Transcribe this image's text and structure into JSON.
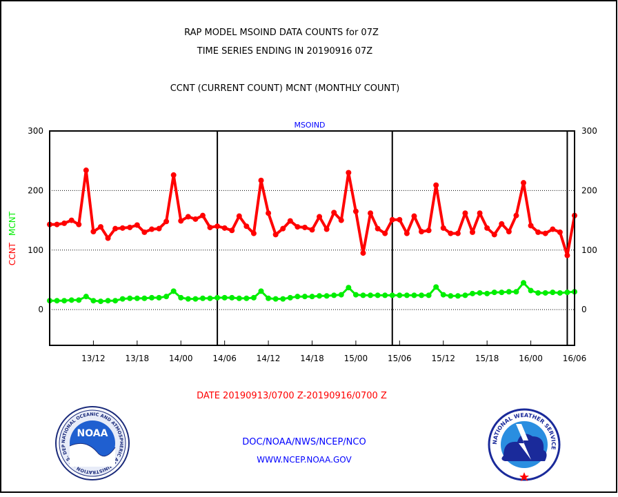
{
  "header": {
    "title_line1": "RAP MODEL MSOIND DATA COUNTS for 07Z",
    "title_line2": "TIME SERIES ENDING IN 20190916 07Z",
    "subtitle": "CCNT (CURRENT COUNT) MCNT (MONTHLY COUNT)"
  },
  "footer": {
    "date_range": "DATE 20190913/0700 Z-20190916/0700 Z",
    "org_line": "DOC/NOAA/NWS/NCEP/NCO",
    "url_line": "WWW.NCEP.NOAA.GOV"
  },
  "logos": {
    "noaa": {
      "center_text": "NOAA",
      "ring_text": "NATIONAL OCEANIC AND ATMOSPHERIC ADMINISTRATION · U.S. DEPARTMENT OF COMMERCE"
    },
    "nws": {
      "ring_text": "NATIONAL WEATHER SERVICE"
    }
  },
  "colors": {
    "ccnt": "#ff0000",
    "mcnt": "#00ee00",
    "label_blue": "#0000ff",
    "frame": "#000000"
  },
  "chart_data": {
    "type": "line",
    "plot_label": "MSOIND",
    "ylabel_left": {
      "part1": "CCNT",
      "part2": "MCNT"
    },
    "ylim": [
      -60,
      300
    ],
    "yticks": [
      0,
      100,
      200,
      300
    ],
    "dotted_gridlines_at": [
      0,
      100,
      200
    ],
    "x_unit": "hours since 20190913/0700Z",
    "xlim": [
      0,
      72
    ],
    "xticks": [
      {
        "x": 6,
        "label": "13/12"
      },
      {
        "x": 12,
        "label": "13/18"
      },
      {
        "x": 18,
        "label": "14/00"
      },
      {
        "x": 24,
        "label": "14/06"
      },
      {
        "x": 30,
        "label": "14/12"
      },
      {
        "x": 36,
        "label": "14/18"
      },
      {
        "x": 42,
        "label": "15/00"
      },
      {
        "x": 48,
        "label": "15/06"
      },
      {
        "x": 54,
        "label": "15/12"
      },
      {
        "x": 60,
        "label": "15/18"
      },
      {
        "x": 66,
        "label": "16/00"
      },
      {
        "x": 72,
        "label": "16/06"
      }
    ],
    "day_separators_x": [
      23,
      47,
      71
    ],
    "series": [
      {
        "name": "CCNT",
        "x": [
          0,
          1,
          2,
          3,
          4,
          5,
          6,
          7,
          8,
          9,
          10,
          11,
          12,
          13,
          14,
          15,
          16,
          17,
          18,
          19,
          20,
          21,
          22,
          23,
          24,
          25,
          26,
          27,
          28,
          29,
          30,
          31,
          32,
          33,
          34,
          35,
          36,
          37,
          38,
          39,
          40,
          41,
          42,
          43,
          44,
          45,
          46,
          47,
          48,
          49,
          50,
          51,
          52,
          53,
          54,
          55,
          56,
          57,
          58,
          59,
          60,
          61,
          62,
          63,
          64,
          65,
          66,
          67,
          68,
          69,
          70,
          71,
          72
        ],
        "values": [
          143,
          143,
          145,
          150,
          143,
          234,
          131,
          139,
          120,
          136,
          137,
          138,
          142,
          130,
          135,
          136,
          148,
          226,
          149,
          156,
          152,
          158,
          138,
          140,
          137,
          133,
          157,
          140,
          128,
          217,
          162,
          126,
          136,
          149,
          139,
          138,
          134,
          156,
          135,
          163,
          150,
          230,
          165,
          95,
          162,
          136,
          128,
          151,
          151,
          128,
          157,
          131,
          133,
          209,
          137,
          128,
          128,
          162,
          130,
          162,
          137,
          126,
          144,
          131,
          158,
          213,
          141,
          130,
          128,
          135,
          130,
          91,
          158
        ]
      },
      {
        "name": "MCNT",
        "x": [
          0,
          1,
          2,
          3,
          4,
          5,
          6,
          7,
          8,
          9,
          10,
          11,
          12,
          13,
          14,
          15,
          16,
          17,
          18,
          19,
          20,
          21,
          22,
          23,
          24,
          25,
          26,
          27,
          28,
          29,
          30,
          31,
          32,
          33,
          34,
          35,
          36,
          37,
          38,
          39,
          40,
          41,
          42,
          43,
          44,
          45,
          46,
          47,
          48,
          49,
          50,
          51,
          52,
          53,
          54,
          55,
          56,
          57,
          58,
          59,
          60,
          61,
          62,
          63,
          64,
          65,
          66,
          67,
          68,
          69,
          70,
          71,
          72
        ],
        "values": [
          15,
          15,
          15,
          16,
          16,
          22,
          15,
          14,
          15,
          15,
          18,
          19,
          19,
          19,
          20,
          20,
          22,
          31,
          20,
          18,
          18,
          19,
          19,
          20,
          20,
          20,
          19,
          19,
          20,
          31,
          19,
          18,
          18,
          20,
          22,
          22,
          22,
          23,
          23,
          24,
          25,
          37,
          25,
          24,
          24,
          24,
          24,
          24,
          24,
          24,
          24,
          24,
          24,
          38,
          25,
          23,
          23,
          24,
          27,
          28,
          27,
          29,
          29,
          30,
          30,
          45,
          32,
          28,
          28,
          29,
          28,
          29,
          30
        ]
      }
    ]
  }
}
